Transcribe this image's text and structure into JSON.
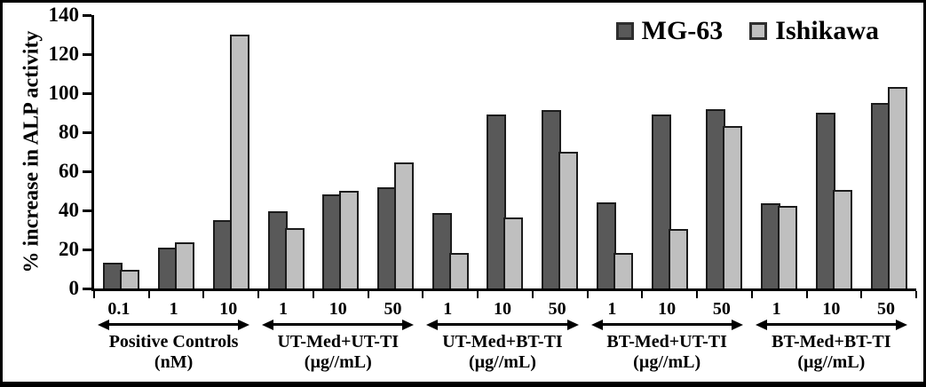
{
  "figure": {
    "background": "#ffffff",
    "frame_color": "#000000"
  },
  "chart_data": {
    "type": "bar",
    "title": "",
    "xlabel": "",
    "ylabel": "% increase in ALP activity",
    "ylim": [
      0,
      140
    ],
    "yticks": [
      0,
      20,
      40,
      60,
      80,
      100,
      120,
      140
    ],
    "grid": false,
    "legend_position": "top-right",
    "bar_colors": {
      "MG-63": "#595959",
      "Ishikawa": "#bfbfbf"
    },
    "groups": [
      {
        "name": "Positive Controls",
        "unit": "(nM)",
        "doses": [
          "0.1",
          "1",
          "10"
        ]
      },
      {
        "name": "UT-Med+UT-TI",
        "unit": "(µg//mL)",
        "doses": [
          "1",
          "10",
          "50"
        ]
      },
      {
        "name": "UT-Med+BT-TI",
        "unit": "(µg//mL)",
        "doses": [
          "1",
          "10",
          "50"
        ]
      },
      {
        "name": "BT-Med+UT-TI",
        "unit": "(µg//mL)",
        "doses": [
          "1",
          "10",
          "50"
        ]
      },
      {
        "name": "BT-Med+BT-TI",
        "unit": "(µg//mL)",
        "doses": [
          "1",
          "10",
          "50"
        ]
      }
    ],
    "categories": [
      "0.1",
      "1",
      "10",
      "1",
      "10",
      "50",
      "1",
      "10",
      "50",
      "1",
      "10",
      "50",
      "1",
      "10",
      "50"
    ],
    "series": [
      {
        "name": "MG-63",
        "color": "#595959",
        "values": [
          13,
          21,
          35,
          39.5,
          48,
          52,
          38.5,
          89,
          91.5,
          44,
          89,
          92,
          43.5,
          90,
          95
        ]
      },
      {
        "name": "Ishikawa",
        "color": "#bfbfbf",
        "values": [
          9.5,
          23.5,
          130,
          31,
          50,
          64.5,
          18,
          36.5,
          70,
          18,
          30.5,
          83,
          42.5,
          50.5,
          103
        ]
      }
    ]
  }
}
